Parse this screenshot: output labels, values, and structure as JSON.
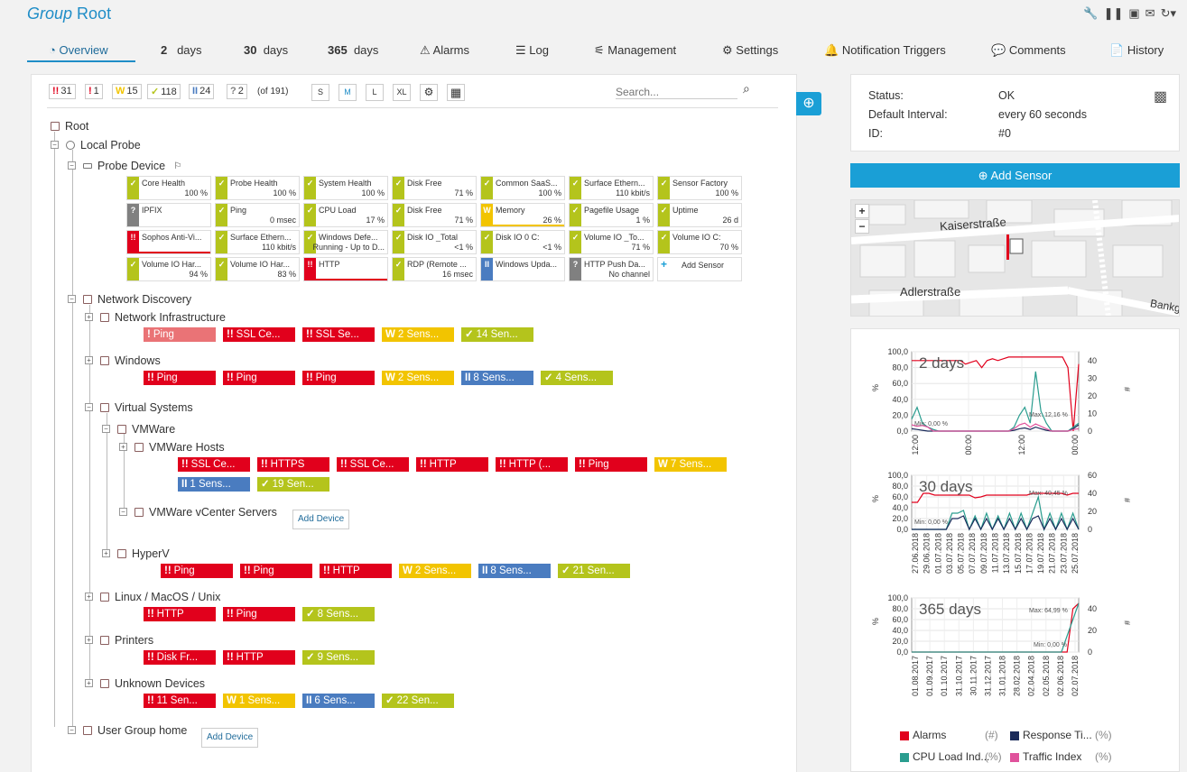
{
  "header": {
    "title_prefix": "Group",
    "title_name": "Root"
  },
  "tabs": [
    {
      "label": "Overview",
      "icon": "gauge-icon"
    },
    {
      "num": "2",
      "label": "days"
    },
    {
      "num": "30",
      "label": "days"
    },
    {
      "num": "365",
      "label": "days"
    },
    {
      "label": "Alarms",
      "icon": "warning-icon"
    },
    {
      "label": "Log",
      "icon": "list-icon"
    },
    {
      "label": "Management",
      "icon": "sliders-icon"
    },
    {
      "label": "Settings",
      "icon": "gear-icon"
    },
    {
      "label": "Notification Triggers",
      "icon": "bell-icon"
    },
    {
      "label": "Comments",
      "icon": "comment-icon"
    },
    {
      "label": "History",
      "icon": "history-icon"
    }
  ],
  "filters": {
    "counts": [
      {
        "icon": "!!",
        "value": "31",
        "color": "#e1001c"
      },
      {
        "icon": "!",
        "value": "1",
        "color": "#e1001c"
      },
      {
        "icon": "W",
        "value": "15",
        "color": "#f2c400"
      },
      {
        "icon": "✓",
        "value": "118",
        "color": "#b4c41c"
      },
      {
        "icon": "II",
        "value": "24",
        "color": "#4a7cc0"
      },
      {
        "icon": "?",
        "value": "2",
        "color": "#808080"
      }
    ],
    "total": "(of 191)",
    "sizes": [
      "S",
      "M",
      "L",
      "XL"
    ],
    "search_placeholder": "Search..."
  },
  "tree": {
    "root": "Root",
    "local_probe": "Local Probe",
    "probe_device": "Probe Device",
    "network_discovery": "Network Discovery",
    "network_infrastructure": "Network Infrastructure",
    "windows": "Windows",
    "virtual_systems": "Virtual Systems",
    "vmware": "VMWare",
    "vmware_hosts": "VMWare Hosts",
    "vcenter": "VMWare vCenter Servers",
    "hyperv": "HyperV",
    "linux": "Linux / MacOS / Unix",
    "printers": "Printers",
    "unknown": "Unknown Devices",
    "user_group": "User Group home",
    "add_device": "Add Device"
  },
  "probe_sensors": [
    {
      "name": "Core Health",
      "value": "100 %",
      "status": "grn",
      "icon": "✓"
    },
    {
      "name": "Probe Health",
      "value": "100 %",
      "status": "grn",
      "icon": "✓"
    },
    {
      "name": "System Health",
      "value": "100 %",
      "status": "grn",
      "icon": "✓"
    },
    {
      "name": "Disk Free",
      "value": "71 %",
      "status": "grn",
      "icon": "✓"
    },
    {
      "name": "Common SaaS...",
      "value": "100 %",
      "status": "grn",
      "icon": "✓"
    },
    {
      "name": "Surface Ethern...",
      "value": "110 kbit/s",
      "status": "grn",
      "icon": "✓"
    },
    {
      "name": "Sensor Factory",
      "value": "100 %",
      "status": "grn",
      "icon": "✓"
    },
    {
      "name": "IPFIX",
      "value": "",
      "status": "gry",
      "icon": "?"
    },
    {
      "name": "Ping",
      "value": "0 msec",
      "status": "grn",
      "icon": "✓"
    },
    {
      "name": "CPU Load",
      "value": "17 %",
      "status": "grn",
      "icon": "✓"
    },
    {
      "name": "Disk Free",
      "value": "71 %",
      "status": "grn",
      "icon": "✓"
    },
    {
      "name": "Memory",
      "value": "26 %",
      "status": "yel",
      "icon": "W"
    },
    {
      "name": "Pagefile Usage",
      "value": "1 %",
      "status": "grn",
      "icon": "✓"
    },
    {
      "name": "Uptime",
      "value": "26 d",
      "status": "grn",
      "icon": "✓"
    },
    {
      "name": "Sophos Anti-Vi...",
      "value": "",
      "status": "red",
      "icon": "!!"
    },
    {
      "name": "Surface Ethern...",
      "value": "110 kbit/s",
      "status": "grn",
      "icon": "✓"
    },
    {
      "name": "Windows Defe...",
      "value": "Running - Up to D...",
      "status": "grn",
      "icon": "✓"
    },
    {
      "name": "Disk IO _Total",
      "value": "<1 %",
      "status": "grn",
      "icon": "✓"
    },
    {
      "name": "Disk IO 0 C:",
      "value": "<1 %",
      "status": "grn",
      "icon": "✓"
    },
    {
      "name": "Volume IO _To...",
      "value": "71 %",
      "status": "grn",
      "icon": "✓"
    },
    {
      "name": "Volume IO C:",
      "value": "70 %",
      "status": "grn",
      "icon": "✓"
    },
    {
      "name": "Volume IO Har...",
      "value": "94 %",
      "status": "grn",
      "icon": "✓"
    },
    {
      "name": "Volume IO Har...",
      "value": "83 %",
      "status": "grn",
      "icon": "✓"
    },
    {
      "name": "HTTP",
      "value": "",
      "status": "red",
      "icon": "!!"
    },
    {
      "name": "RDP (Remote ...",
      "value": "16 msec",
      "status": "grn",
      "icon": "✓"
    },
    {
      "name": "Windows Upda...",
      "value": "",
      "status": "blu",
      "icon": "II"
    },
    {
      "name": "HTTP Push Da...",
      "value": "No channel",
      "status": "gry",
      "icon": "?"
    },
    {
      "name": "Add Sensor",
      "value": "",
      "status": "add",
      "icon": "+"
    }
  ],
  "groups": {
    "network_infrastructure": [
      {
        "status": "lred",
        "icon": "!",
        "label": "Ping"
      },
      {
        "status": "red",
        "icon": "!!",
        "label": "SSL Ce..."
      },
      {
        "status": "red",
        "icon": "!!",
        "label": "SSL Se..."
      },
      {
        "status": "yel",
        "icon": "W",
        "label": "2 Sens..."
      },
      {
        "status": "grn",
        "icon": "✓",
        "label": "14 Sen..."
      }
    ],
    "windows": [
      {
        "status": "red",
        "icon": "!!",
        "label": "Ping"
      },
      {
        "status": "red",
        "icon": "!!",
        "label": "Ping"
      },
      {
        "status": "red",
        "icon": "!!",
        "label": "Ping"
      },
      {
        "status": "yel",
        "icon": "W",
        "label": "2 Sens..."
      },
      {
        "status": "blu",
        "icon": "II",
        "label": "8 Sens..."
      },
      {
        "status": "grn",
        "icon": "✓",
        "label": "4 Sens..."
      }
    ],
    "vmware_hosts": [
      {
        "status": "red",
        "icon": "!!",
        "label": "SSL Ce..."
      },
      {
        "status": "red",
        "icon": "!!",
        "label": "HTTPS"
      },
      {
        "status": "red",
        "icon": "!!",
        "label": "SSL Ce..."
      },
      {
        "status": "red",
        "icon": "!!",
        "label": "HTTP"
      },
      {
        "status": "red",
        "icon": "!!",
        "label": "HTTP (..."
      },
      {
        "status": "red",
        "icon": "!!",
        "label": "Ping"
      },
      {
        "status": "yel",
        "icon": "W",
        "label": "7 Sens..."
      },
      {
        "status": "blu",
        "icon": "II",
        "label": "1 Sens..."
      },
      {
        "status": "grn",
        "icon": "✓",
        "label": "19 Sen..."
      }
    ],
    "hyperv": [
      {
        "status": "red",
        "icon": "!!",
        "label": "Ping"
      },
      {
        "status": "red",
        "icon": "!!",
        "label": "Ping"
      },
      {
        "status": "red",
        "icon": "!!",
        "label": "HTTP"
      },
      {
        "status": "yel",
        "icon": "W",
        "label": "2 Sens..."
      },
      {
        "status": "blu",
        "icon": "II",
        "label": "8 Sens..."
      },
      {
        "status": "grn",
        "icon": "✓",
        "label": "21 Sen..."
      }
    ],
    "linux": [
      {
        "status": "red",
        "icon": "!!",
        "label": "HTTP"
      },
      {
        "status": "red",
        "icon": "!!",
        "label": "Ping"
      },
      {
        "status": "grn",
        "icon": "✓",
        "label": "8 Sens..."
      }
    ],
    "printers": [
      {
        "status": "red",
        "icon": "!!",
        "label": "Disk Fr..."
      },
      {
        "status": "red",
        "icon": "!!",
        "label": "HTTP"
      },
      {
        "status": "grn",
        "icon": "✓",
        "label": "9 Sens..."
      }
    ],
    "unknown": [
      {
        "status": "red",
        "icon": "!!",
        "label": "11 Sen..."
      },
      {
        "status": "yel",
        "icon": "W",
        "label": "1 Sens..."
      },
      {
        "status": "blu",
        "icon": "II",
        "label": "6 Sens..."
      },
      {
        "status": "grn",
        "icon": "✓",
        "label": "22 Sen..."
      }
    ]
  },
  "info": {
    "status_label": "Status:",
    "status_value": "OK",
    "interval_label": "Default Interval:",
    "interval_value": "every  60 seconds",
    "id_label": "ID:",
    "id_value": "#0",
    "add_sensor": "Add Sensor"
  },
  "map": {
    "street1": "Kaiserstraße",
    "street2": "Adlerstraße",
    "street3": "Bankg",
    "zoom_in": "+",
    "zoom_out": "−"
  },
  "chart_data": [
    {
      "type": "line",
      "title": "2 days",
      "ylabel_left": "%",
      "ylabel_right": "#",
      "ylim_left": [
        0,
        100
      ],
      "ylim_right": [
        0,
        45
      ],
      "yticks_left": [
        "100,0",
        "80,0",
        "60,0",
        "40,0",
        "20,0",
        "0,0"
      ],
      "yticks_right": [
        "40",
        "30",
        "20",
        "10",
        "0"
      ],
      "x_ticks": [
        "23.07 12:00",
        "24.07 00:00",
        "24.07 12:00",
        "25.07 00:00"
      ],
      "annotations": [
        "Min: 0,00 %",
        "Max: 12,16 %"
      ],
      "series": [
        {
          "name": "Alarms",
          "color": "#e1001c",
          "values": [
            40,
            40,
            40,
            40,
            40,
            40,
            40,
            40,
            40,
            40,
            38,
            39,
            40,
            36,
            40,
            41,
            40,
            41,
            42,
            42,
            42,
            42,
            42,
            42,
            42,
            42,
            42,
            42,
            42,
            36,
            0,
            38
          ]
        },
        {
          "name": "CPU Load Index",
          "color": "#2a9d8f",
          "values": [
            15,
            30,
            10,
            5,
            2,
            0,
            0,
            0,
            0,
            0,
            0,
            0,
            0,
            0,
            0,
            0,
            0,
            0,
            0,
            5,
            20,
            30,
            10,
            75,
            25,
            10,
            0,
            0,
            0,
            0,
            5,
            10
          ]
        },
        {
          "name": "Response Time Index",
          "color": "#1a2a5a",
          "values": [
            3,
            2,
            1,
            0,
            0,
            0,
            0,
            0,
            0,
            0,
            0,
            0,
            0,
            0,
            0,
            0,
            0,
            0,
            0,
            1,
            3,
            4,
            2,
            5,
            3,
            1,
            0,
            0,
            0,
            0,
            3,
            8
          ]
        },
        {
          "name": "Traffic Index",
          "color": "#e0529c",
          "values": [
            8,
            6,
            7,
            5,
            0,
            0,
            0,
            0,
            0,
            0,
            0,
            0,
            0,
            0,
            0,
            0,
            0,
            0,
            0,
            3,
            8,
            10,
            5,
            9,
            6,
            3,
            0,
            0,
            0,
            0,
            2,
            3
          ]
        }
      ]
    },
    {
      "type": "line",
      "title": "30 days",
      "ylabel_left": "%",
      "ylabel_right": "#",
      "ylim_left": [
        0,
        100
      ],
      "ylim_right": [
        0,
        60
      ],
      "yticks_left": [
        "100,0",
        "80,0",
        "60,0",
        "40,0",
        "20,0",
        "0,0"
      ],
      "yticks_right": [
        "60",
        "40",
        "20",
        "0"
      ],
      "x_ticks": [
        "27.06.2018",
        "29.06.2018",
        "01.07.2018",
        "03.07.2018",
        "05.07.2018",
        "07.07.2018",
        "09.07.2018",
        "11.07.2018",
        "13.07.2018",
        "15.07.2018",
        "17.07.2018",
        "19.07.2018",
        "21.07.2018",
        "23.07.2018",
        "25.07.2018"
      ],
      "annotations": [
        "Max: 40,45 %",
        "Min: 0,00 %"
      ],
      "series": [
        {
          "name": "Alarms",
          "color": "#e1001c",
          "values": [
            30,
            30,
            40,
            40,
            38,
            38,
            38,
            38,
            38,
            38,
            38,
            35,
            36,
            38,
            38,
            38,
            38,
            38,
            38,
            38,
            38,
            40,
            40,
            40,
            40,
            40,
            40,
            38,
            40,
            40
          ]
        },
        {
          "name": "CPU Load Index",
          "color": "#2a9d8f",
          "values": [
            0,
            0,
            0,
            0,
            0,
            0,
            0,
            30,
            30,
            35,
            0,
            25,
            0,
            30,
            0,
            25,
            0,
            30,
            0,
            30,
            0,
            30,
            60,
            0,
            30,
            0,
            30,
            0,
            30,
            0
          ]
        },
        {
          "name": "Response Time Index",
          "color": "#1a2a5a",
          "values": [
            0,
            0,
            0,
            0,
            0,
            0,
            0,
            20,
            20,
            25,
            0,
            20,
            0,
            20,
            0,
            20,
            0,
            20,
            0,
            20,
            0,
            20,
            25,
            0,
            20,
            0,
            20,
            0,
            20,
            0
          ]
        }
      ]
    },
    {
      "type": "line",
      "title": "365 days",
      "ylabel_left": "%",
      "ylabel_right": "#",
      "ylim_left": [
        0,
        100
      ],
      "ylim_right": [
        0,
        50
      ],
      "yticks_left": [
        "100,0",
        "80,0",
        "60,0",
        "40,0",
        "20,0",
        "0,0"
      ],
      "yticks_right": [
        "40",
        "20",
        "0"
      ],
      "x_ticks": [
        "01.08.2017",
        "01.09.2017",
        "01.10.2017",
        "31.10.2017",
        "30.11.2017",
        "31.12.2017",
        "31.01.2018",
        "28.02.2018",
        "02.04.2018",
        "02.05.2018",
        "02.06.2018",
        "02.07.2018"
      ],
      "annotations": [
        "Max: 64,99 %",
        "Min: 0,00 %"
      ],
      "series": [
        {
          "name": "Alarms",
          "color": "#e1001c",
          "values": [
            0,
            0,
            0,
            0,
            0,
            0,
            0,
            0,
            0,
            0,
            0,
            0,
            0,
            0,
            0,
            0,
            0,
            0,
            0,
            0,
            0,
            0,
            0,
            0,
            0,
            0,
            0,
            0,
            40,
            45
          ]
        },
        {
          "name": "CPU Load Index",
          "color": "#2a9d8f",
          "values": [
            0,
            0,
            0,
            0,
            0,
            0,
            0,
            0,
            0,
            0,
            0,
            0,
            0,
            0,
            0,
            0,
            0,
            0,
            0,
            0,
            0,
            0,
            0,
            0,
            0,
            0,
            0,
            30,
            60,
            90
          ]
        }
      ]
    }
  ],
  "legend": [
    {
      "name": "Alarms",
      "unit": "(#)",
      "color": "#e1001c"
    },
    {
      "name": "Response Ti...",
      "unit": "(%)",
      "color": "#1a2a5a"
    },
    {
      "name": "CPU Load Ind...",
      "unit": "(%)",
      "color": "#2a9d8f"
    },
    {
      "name": "Traffic Index",
      "unit": "(%)",
      "color": "#e0529c"
    }
  ]
}
